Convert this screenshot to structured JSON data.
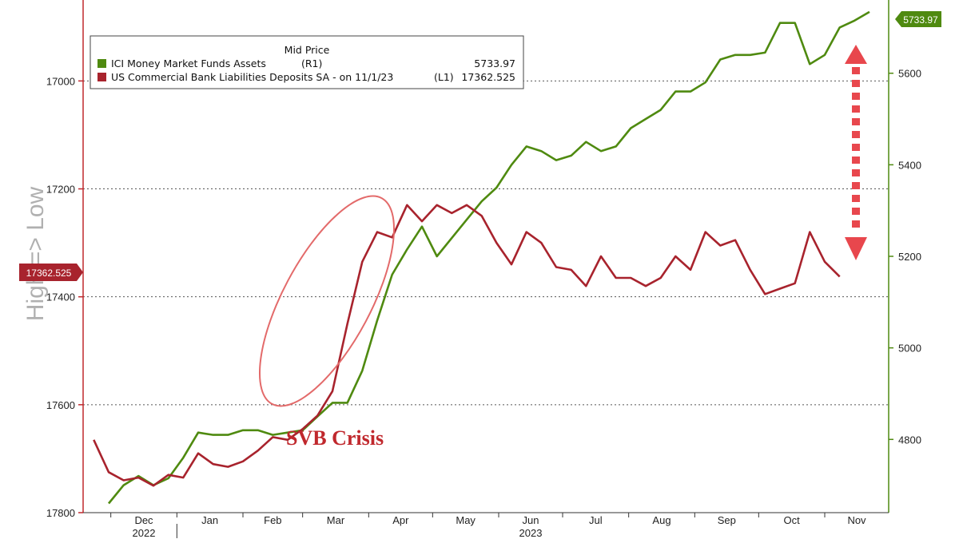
{
  "chart_data": {
    "type": "line",
    "title": "Mid Price",
    "left_axis_title": "High => Low",
    "x_labels": [
      "Dec",
      "Jan",
      "Feb",
      "Mar",
      "Apr",
      "May",
      "Jun",
      "Jul",
      "Aug",
      "Sep",
      "Oct",
      "Nov"
    ],
    "year_labels": [
      "2022",
      "2023"
    ],
    "left_axis": {
      "inverted": true,
      "range": [
        17800,
        16850
      ],
      "ticks": [
        "17000",
        "17200",
        "17400",
        "17600",
        "17800"
      ]
    },
    "right_axis": {
      "range": [
        4640,
        5760
      ],
      "ticks": [
        "4800",
        "5000",
        "5200",
        "5400",
        "5600"
      ]
    },
    "grid": "dotted horizontal at left-axis ticks",
    "legend_placement": "top-left",
    "series": [
      {
        "name": "ICI Money Market Funds Assets",
        "axis_tag": "(R1)",
        "last_value": "5733.97",
        "color": "#4f8a10",
        "axis": "right",
        "points": [
          [
            "2022-11-30",
            4660
          ],
          [
            "2022-12-07",
            4700
          ],
          [
            "2022-12-14",
            4720
          ],
          [
            "2022-12-21",
            4700
          ],
          [
            "2022-12-28",
            4715
          ],
          [
            "2023-01-04",
            4760
          ],
          [
            "2023-01-11",
            4815
          ],
          [
            "2023-01-18",
            4810
          ],
          [
            "2023-01-25",
            4810
          ],
          [
            "2023-02-01",
            4820
          ],
          [
            "2023-02-08",
            4820
          ],
          [
            "2023-02-15",
            4810
          ],
          [
            "2023-02-22",
            4815
          ],
          [
            "2023-03-01",
            4820
          ],
          [
            "2023-03-08",
            4850
          ],
          [
            "2023-03-15",
            4880
          ],
          [
            "2023-03-22",
            4880
          ],
          [
            "2023-03-29",
            4950
          ],
          [
            "2023-04-05",
            5060
          ],
          [
            "2023-04-12",
            5160
          ],
          [
            "2023-04-19",
            5215
          ],
          [
            "2023-04-26",
            5265
          ],
          [
            "2023-05-03",
            5200
          ],
          [
            "2023-05-10",
            5240
          ],
          [
            "2023-05-17",
            5280
          ],
          [
            "2023-05-24",
            5320
          ],
          [
            "2023-05-31",
            5350
          ],
          [
            "2023-06-07",
            5400
          ],
          [
            "2023-06-14",
            5440
          ],
          [
            "2023-06-21",
            5430
          ],
          [
            "2023-06-28",
            5410
          ],
          [
            "2023-07-05",
            5420
          ],
          [
            "2023-07-12",
            5450
          ],
          [
            "2023-07-19",
            5430
          ],
          [
            "2023-07-26",
            5440
          ],
          [
            "2023-08-02",
            5480
          ],
          [
            "2023-08-09",
            5500
          ],
          [
            "2023-08-16",
            5520
          ],
          [
            "2023-08-23",
            5560
          ],
          [
            "2023-08-30",
            5560
          ],
          [
            "2023-09-06",
            5580
          ],
          [
            "2023-09-13",
            5630
          ],
          [
            "2023-09-20",
            5640
          ],
          [
            "2023-09-27",
            5640
          ],
          [
            "2023-10-04",
            5645
          ],
          [
            "2023-10-11",
            5710
          ],
          [
            "2023-10-18",
            5710
          ],
          [
            "2023-10-25",
            5620
          ],
          [
            "2023-11-01",
            5640
          ],
          [
            "2023-11-08",
            5700
          ],
          [
            "2023-11-15",
            5715
          ],
          [
            "2023-11-22",
            5734
          ]
        ]
      },
      {
        "name": "US Commercial Bank Liabilities Deposits SA -  on 11/1/23",
        "axis_tag": "(L1)",
        "last_value": "17362.525",
        "color": "#a8232d",
        "axis": "left",
        "points": [
          [
            "2022-11-23",
            17665
          ],
          [
            "2022-11-30",
            17725
          ],
          [
            "2022-12-07",
            17740
          ],
          [
            "2022-12-14",
            17735
          ],
          [
            "2022-12-21",
            17750
          ],
          [
            "2022-12-28",
            17730
          ],
          [
            "2023-01-04",
            17735
          ],
          [
            "2023-01-11",
            17690
          ],
          [
            "2023-01-18",
            17710
          ],
          [
            "2023-01-25",
            17715
          ],
          [
            "2023-02-01",
            17705
          ],
          [
            "2023-02-08",
            17685
          ],
          [
            "2023-02-15",
            17660
          ],
          [
            "2023-02-22",
            17665
          ],
          [
            "2023-03-01",
            17645
          ],
          [
            "2023-03-08",
            17620
          ],
          [
            "2023-03-15",
            17575
          ],
          [
            "2023-03-22",
            17450
          ],
          [
            "2023-03-29",
            17335
          ],
          [
            "2023-04-05",
            17280
          ],
          [
            "2023-04-12",
            17290
          ],
          [
            "2023-04-19",
            17230
          ],
          [
            "2023-04-26",
            17260
          ],
          [
            "2023-05-03",
            17230
          ],
          [
            "2023-05-10",
            17245
          ],
          [
            "2023-05-17",
            17230
          ],
          [
            "2023-05-24",
            17250
          ],
          [
            "2023-05-31",
            17300
          ],
          [
            "2023-06-07",
            17340
          ],
          [
            "2023-06-14",
            17280
          ],
          [
            "2023-06-21",
            17300
          ],
          [
            "2023-06-28",
            17345
          ],
          [
            "2023-07-05",
            17350
          ],
          [
            "2023-07-12",
            17380
          ],
          [
            "2023-07-19",
            17325
          ],
          [
            "2023-07-26",
            17365
          ],
          [
            "2023-08-02",
            17365
          ],
          [
            "2023-08-09",
            17380
          ],
          [
            "2023-08-16",
            17365
          ],
          [
            "2023-08-23",
            17325
          ],
          [
            "2023-08-30",
            17350
          ],
          [
            "2023-09-06",
            17280
          ],
          [
            "2023-09-13",
            17305
          ],
          [
            "2023-09-20",
            17295
          ],
          [
            "2023-09-27",
            17350
          ],
          [
            "2023-10-04",
            17395
          ],
          [
            "2023-10-11",
            17385
          ],
          [
            "2023-10-18",
            17375
          ],
          [
            "2023-10-25",
            17280
          ],
          [
            "2023-11-01",
            17335
          ],
          [
            "2023-11-08",
            17362.525
          ]
        ]
      }
    ],
    "annotations": [
      {
        "text": "SVB Crisis",
        "color": "#c0282d",
        "near": [
          "2023-03-08",
          17640
        ]
      }
    ]
  }
}
